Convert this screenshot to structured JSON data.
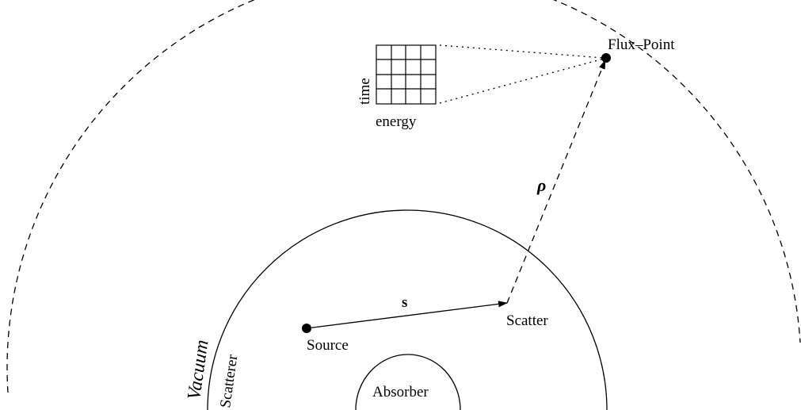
{
  "labels": {
    "flux_point": "Flux–Point",
    "time": "time",
    "energy": "energy",
    "rho": "ρ",
    "s": "s",
    "source": "Source",
    "scatter": "Scatter",
    "vacuum": "Vacuum",
    "scatterer": "Scatterer",
    "absorber": "Absorber"
  }
}
